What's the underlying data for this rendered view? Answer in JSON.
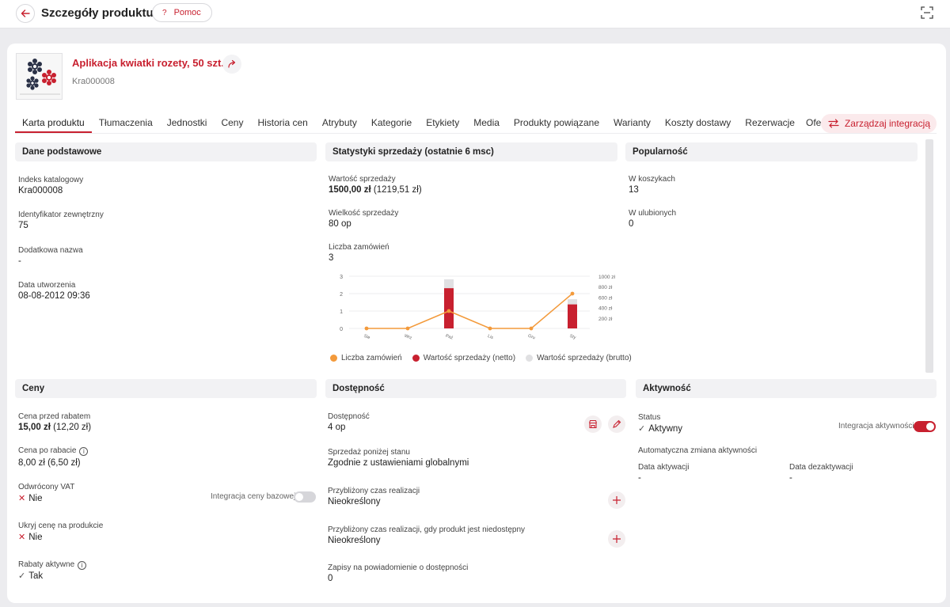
{
  "header": {
    "title": "Szczegóły produktu",
    "help_label": "Pomoc",
    "help_icon": "?"
  },
  "product": {
    "name": "Aplikacja kwiatki rozety, 50 szt.",
    "code": "Kra000008"
  },
  "tabs": [
    {
      "label": "Karta produktu",
      "active": true
    },
    {
      "label": "Tłumaczenia"
    },
    {
      "label": "Jednostki"
    },
    {
      "label": "Ceny"
    },
    {
      "label": "Historia cen"
    },
    {
      "label": "Atrybuty"
    },
    {
      "label": "Kategorie"
    },
    {
      "label": "Etykiety"
    },
    {
      "label": "Media"
    },
    {
      "label": "Produkty powiązane"
    },
    {
      "label": "Warianty"
    },
    {
      "label": "Koszty dostawy"
    },
    {
      "label": "Rezerwacje"
    }
  ],
  "tabs_more": "Oferty",
  "integration_button": "Zarządzaj integracją",
  "basic": {
    "title": "Dane podstawowe",
    "catalog_index_label": "Indeks katalogowy",
    "catalog_index": "Kra000008",
    "external_id_label": "Identyfikator zewnętrzny",
    "external_id": "75",
    "extra_name_label": "Dodatkowa nazwa",
    "extra_name": "-",
    "created_label": "Data utworzenia",
    "created": "08-08-2012 09:36"
  },
  "stats": {
    "title": "Statystyki sprzedaży (ostatnie 6 msc)",
    "sales_value_label": "Wartość sprzedaży",
    "sales_value_main": "1500,00 zł",
    "sales_value_gross": "(1219,51 zł)",
    "sales_volume_label": "Wielkość sprzedaży",
    "sales_volume": "80 op",
    "orders_label": "Liczba zamówień",
    "orders": "3"
  },
  "popularity": {
    "title": "Popularność",
    "in_carts_label": "W koszykach",
    "in_carts": "13",
    "favorites_label": "W ulubionych",
    "favorites": "0"
  },
  "prices": {
    "title": "Ceny",
    "before_discount_label": "Cena przed rabatem",
    "before_discount_main": "15,00 zł",
    "before_discount_gross": "(12,20 zł)",
    "after_discount_label": "Cena po rabacie",
    "after_discount": "8,00 zł (6,50 zł)",
    "reverse_vat_label": "Odwrócony VAT",
    "reverse_vat": "Nie",
    "base_price_integration_label": "Integracja ceny bazowej",
    "base_price_integration_on": false,
    "hide_price_label": "Ukryj cenę na produkcie",
    "hide_price": "Nie",
    "discounts_label": "Rabaty aktywne",
    "discounts": "Tak"
  },
  "availability": {
    "title": "Dostępność",
    "availability_label": "Dostępność",
    "availability": "4 op",
    "below_stock_label": "Sprzedaż poniżej stanu",
    "below_stock": "Zgodnie z ustawieniami globalnymi",
    "lead_time_label": "Przybliżony czas realizacji",
    "lead_time": "Nieokreślony",
    "lead_time_unavailable_label": "Przybliżony czas realizacji, gdy produkt jest niedostępny",
    "lead_time_unavailable": "Nieokreślony",
    "notify_label": "Zapisy na powiadomienie o dostępności",
    "notify": "0"
  },
  "activity": {
    "title": "Aktywność",
    "status_label": "Status",
    "status": "Aktywny",
    "integration_label": "Integracja aktywności",
    "integration_on": true,
    "auto_change_label": "Automatyczna zmiana aktywności",
    "activation_label": "Data aktywacji",
    "activation": "-",
    "deactivation_label": "Data dezaktywacji",
    "deactivation": "-"
  },
  "chart_data": {
    "type": "bar",
    "categories": [
      "Sie",
      "Wrz",
      "Paź",
      "Lis",
      "Gru",
      "Sty"
    ],
    "series": [
      {
        "name": "Liczba zamówień",
        "kind": "line",
        "axis": "left",
        "color": "#f39a3b",
        "values": [
          0,
          0,
          1,
          0,
          0,
          2
        ]
      },
      {
        "name": "Wartość sprzedaży (netto)",
        "kind": "bar",
        "axis": "right",
        "color": "#c8202f",
        "values": [
          0,
          0,
          770,
          0,
          0,
          460
        ]
      },
      {
        "name": "Wartość sprzedaży (brutto)",
        "kind": "bar",
        "axis": "right",
        "color": "#e0e0e2",
        "values": [
          0,
          0,
          940,
          0,
          0,
          560
        ]
      }
    ],
    "y_left": {
      "ticks": [
        0,
        1,
        2,
        3
      ],
      "ylim": [
        0,
        3
      ]
    },
    "y_right": {
      "ticks": [
        "200 zł",
        "400 zł",
        "600 zł",
        "800 zł",
        "1000 zł"
      ],
      "ylim": [
        0,
        1000
      ]
    },
    "legend": "bottom",
    "grid": true
  }
}
